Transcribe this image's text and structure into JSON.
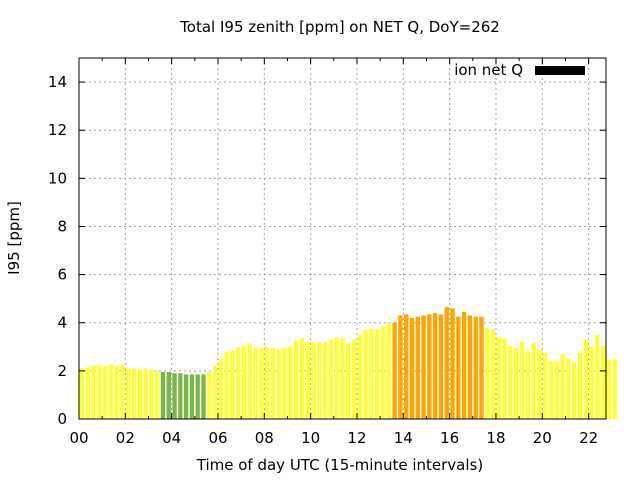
{
  "chart_data": {
    "type": "bar",
    "title": "Total I95 zenith [ppm] on NET Q, DoY=262",
    "xlabel": "Time of day UTC (15-minute intervals)",
    "ylabel": "I95 [ppm]",
    "xlim": [
      0,
      22.75
    ],
    "ylim": [
      0,
      15
    ],
    "interval_hours": 0.25,
    "x_ticks": [
      0,
      2,
      4,
      6,
      8,
      10,
      12,
      14,
      16,
      18,
      20,
      22
    ],
    "x_tick_labels": [
      "00",
      "02",
      "04",
      "06",
      "08",
      "10",
      "12",
      "14",
      "16",
      "18",
      "20",
      "22"
    ],
    "y_ticks": [
      0,
      2,
      4,
      6,
      8,
      10,
      12,
      14
    ],
    "y_tick_labels": [
      "0",
      "2",
      "4",
      "6",
      "8",
      "10",
      "12",
      "14"
    ],
    "grid": true,
    "legend": {
      "label": "ion net Q",
      "placement": "top-right",
      "color": "#000000"
    },
    "level_colors": {
      "low": "#7ab648",
      "normal": "#ffff33",
      "elevated": "#ffa500"
    },
    "values": [
      2.1,
      2.15,
      2.2,
      2.25,
      2.2,
      2.25,
      2.2,
      2.25,
      2.1,
      2.1,
      2.05,
      2.1,
      2.05,
      2.0,
      1.95,
      1.95,
      1.9,
      1.9,
      1.85,
      1.85,
      1.85,
      1.85,
      1.95,
      2.2,
      2.5,
      2.8,
      2.85,
      3.0,
      3.05,
      3.1,
      2.95,
      2.95,
      3.0,
      2.95,
      2.9,
      2.95,
      3.0,
      3.25,
      3.35,
      3.2,
      3.2,
      3.2,
      3.2,
      3.3,
      3.4,
      3.35,
      3.15,
      3.3,
      3.5,
      3.7,
      3.75,
      3.75,
      3.85,
      4.0,
      4.0,
      4.3,
      4.35,
      4.2,
      4.25,
      4.3,
      4.35,
      4.4,
      4.35,
      4.65,
      4.6,
      4.25,
      4.45,
      4.3,
      4.25,
      4.25,
      3.8,
      3.7,
      3.4,
      3.35,
      3.05,
      2.95,
      3.2,
      2.8,
      3.15,
      2.9,
      2.75,
      2.4,
      2.4,
      2.7,
      2.5,
      2.35,
      2.75,
      3.3,
      3.0,
      3.5,
      3.05,
      2.45,
      2.5
    ],
    "levels": [
      "normal",
      "normal",
      "normal",
      "normal",
      "normal",
      "normal",
      "normal",
      "normal",
      "normal",
      "normal",
      "normal",
      "normal",
      "normal",
      "normal",
      "low",
      "low",
      "low",
      "low",
      "low",
      "low",
      "low",
      "low",
      "normal",
      "normal",
      "normal",
      "normal",
      "normal",
      "normal",
      "normal",
      "normal",
      "normal",
      "normal",
      "normal",
      "normal",
      "normal",
      "normal",
      "normal",
      "normal",
      "normal",
      "normal",
      "normal",
      "normal",
      "normal",
      "normal",
      "normal",
      "normal",
      "normal",
      "normal",
      "normal",
      "normal",
      "normal",
      "normal",
      "normal",
      "normal",
      "elevated",
      "elevated",
      "elevated",
      "elevated",
      "elevated",
      "elevated",
      "elevated",
      "elevated",
      "elevated",
      "elevated",
      "elevated",
      "elevated",
      "elevated",
      "elevated",
      "elevated",
      "elevated",
      "normal",
      "normal",
      "normal",
      "normal",
      "normal",
      "normal",
      "normal",
      "normal",
      "normal",
      "normal",
      "normal",
      "normal",
      "normal",
      "normal",
      "normal",
      "normal",
      "normal",
      "normal",
      "normal",
      "normal",
      "normal",
      "normal",
      "normal"
    ]
  }
}
